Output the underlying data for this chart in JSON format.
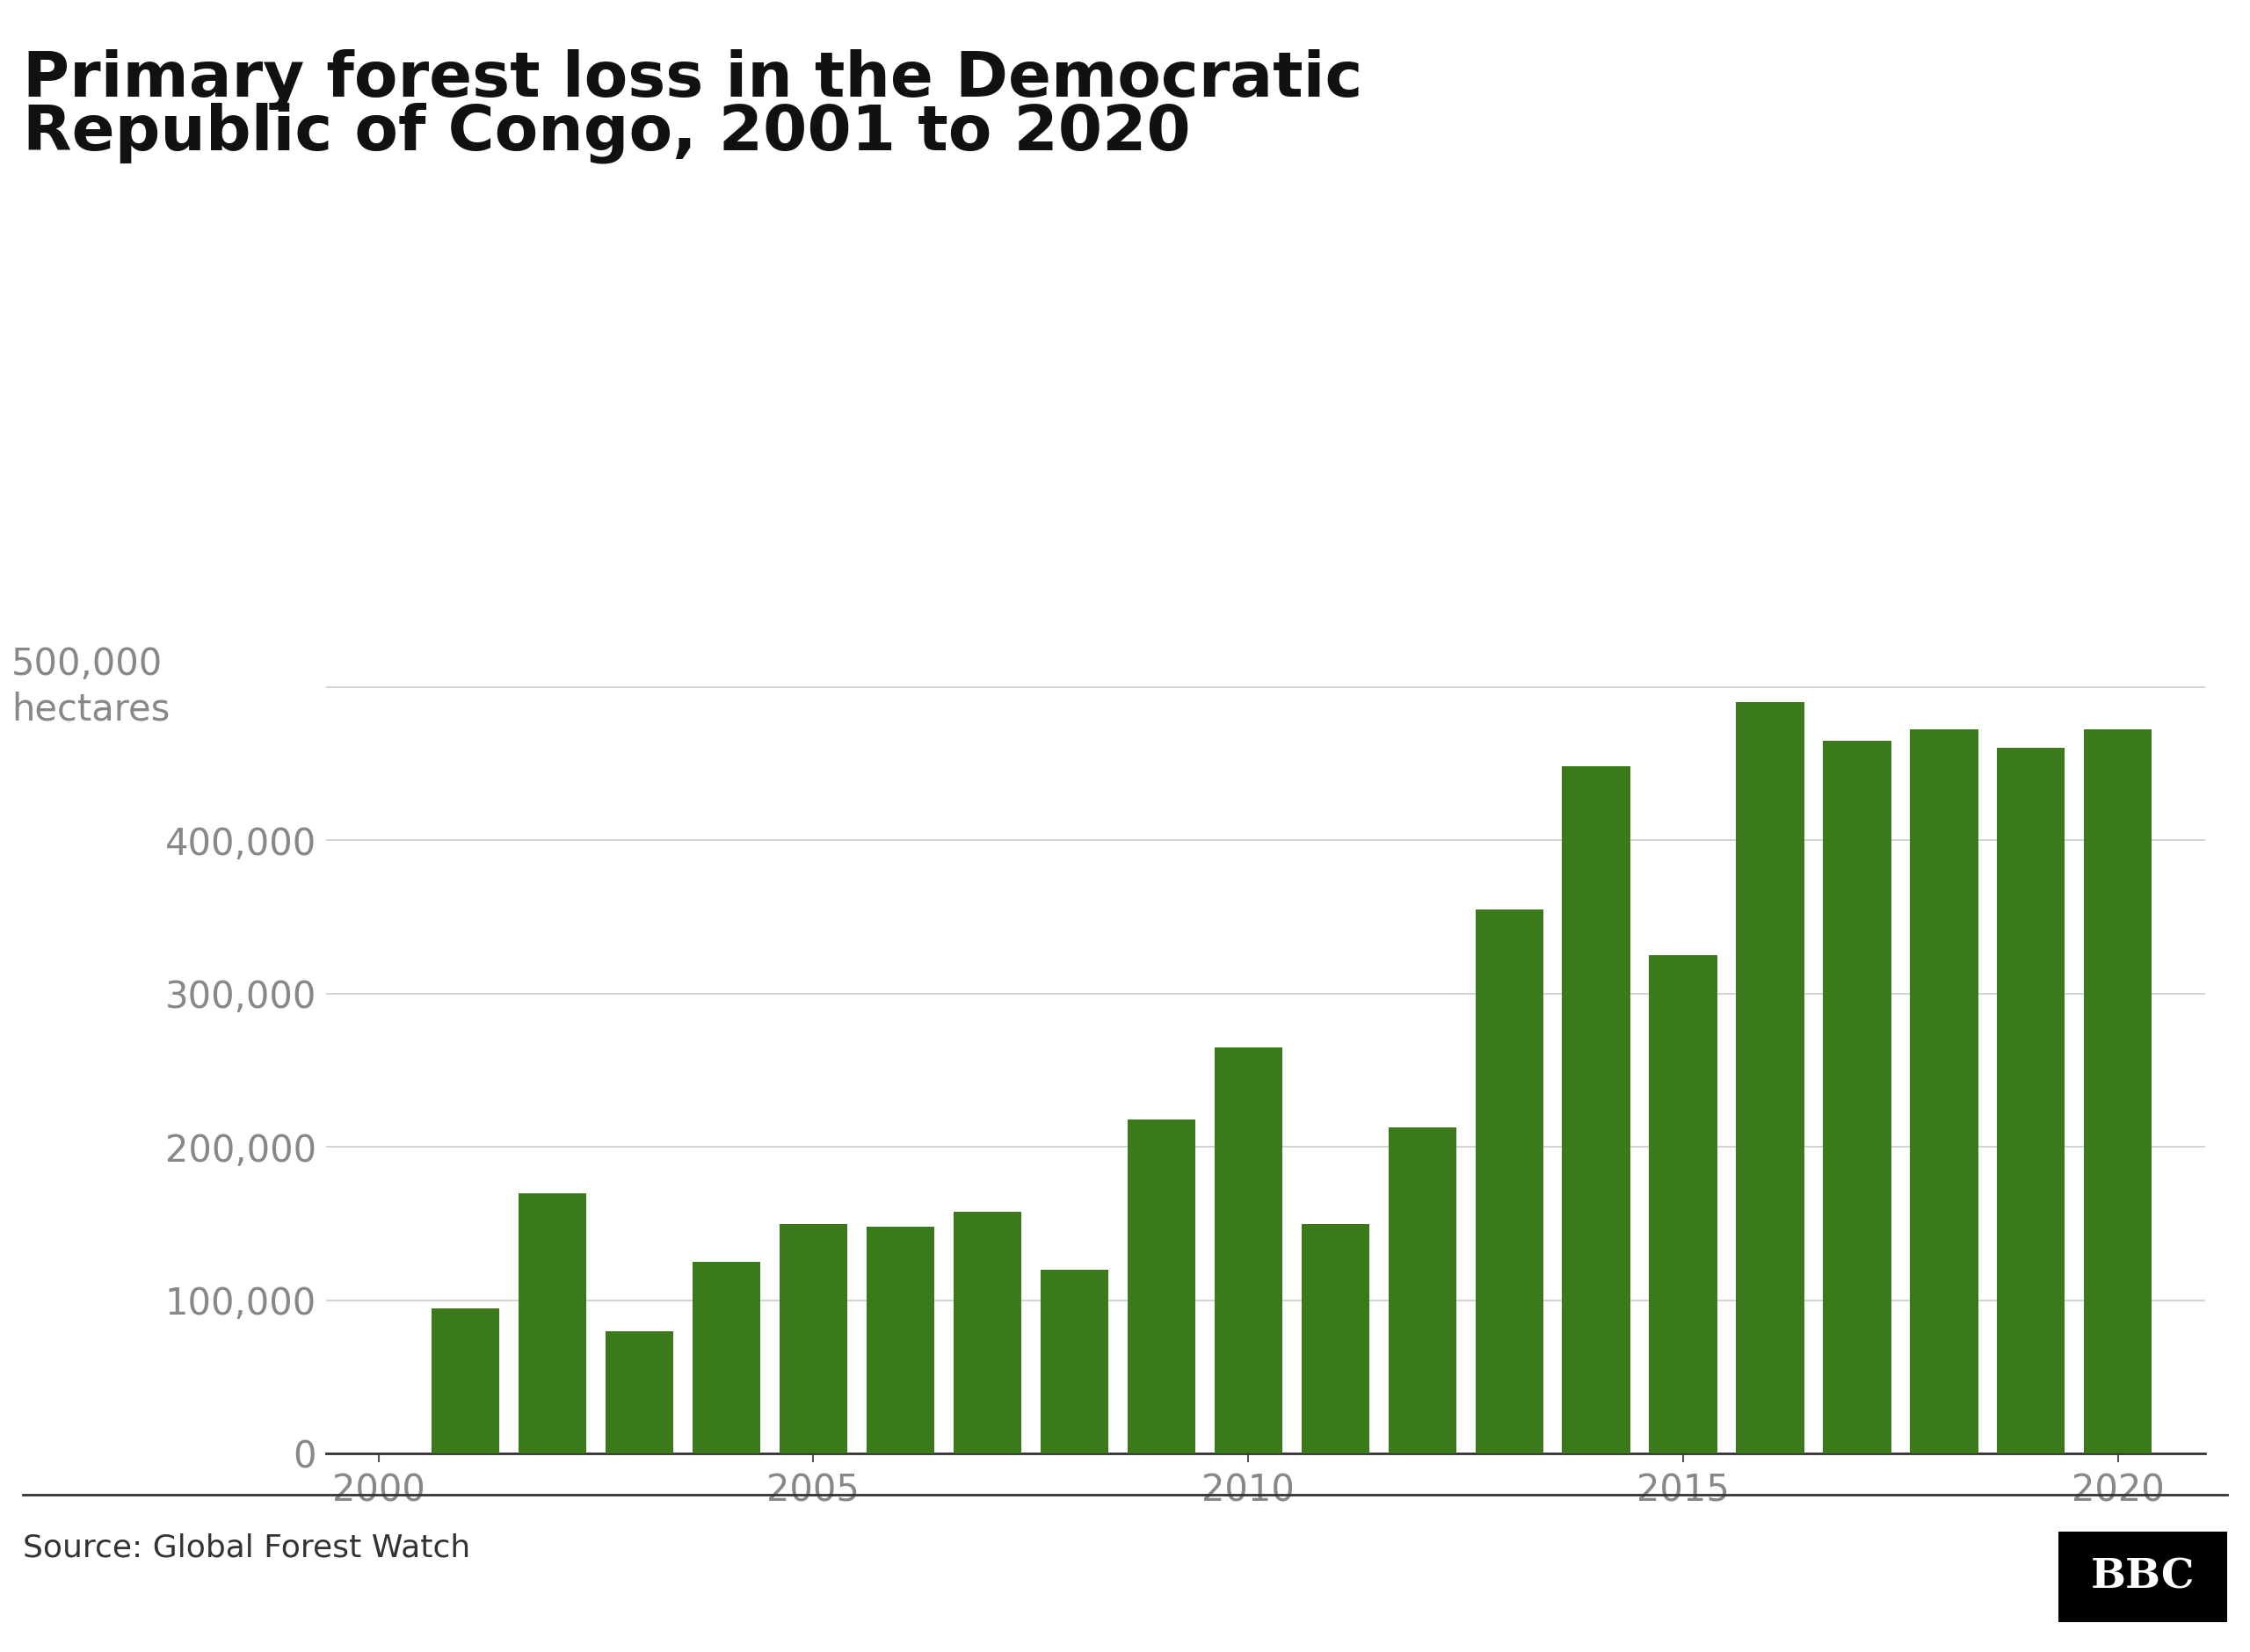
{
  "title_line1": "Primary forest loss in the Democratic",
  "title_line2": "Republic of Congo, 2001 to 2020",
  "source": "Source: Global Forest Watch",
  "bar_color": "#3a7a1a",
  "background_color": "#ffffff",
  "years": [
    2001,
    2002,
    2003,
    2004,
    2005,
    2006,
    2007,
    2008,
    2009,
    2010,
    2011,
    2012,
    2013,
    2014,
    2015,
    2016,
    2017,
    2018,
    2019,
    2020
  ],
  "values": [
    95000,
    170000,
    80000,
    125000,
    150000,
    148000,
    158000,
    120000,
    218000,
    265000,
    150000,
    213000,
    355000,
    448000,
    325000,
    490000,
    465000,
    472000,
    460000,
    472000
  ],
  "ylim": [
    0,
    560000
  ],
  "yticks": [
    0,
    100000,
    200000,
    300000,
    400000,
    500000
  ],
  "xticks": [
    2000,
    2005,
    2010,
    2015,
    2020
  ],
  "xlim": [
    1999.4,
    2021.0
  ],
  "title_fontsize": 52,
  "tick_fontsize": 30,
  "source_fontsize": 26,
  "ylabel_fontsize": 30,
  "grid_color": "#cccccc",
  "bbc_bg": "#000000",
  "bbc_text": "#ffffff",
  "tick_color": "#888888"
}
